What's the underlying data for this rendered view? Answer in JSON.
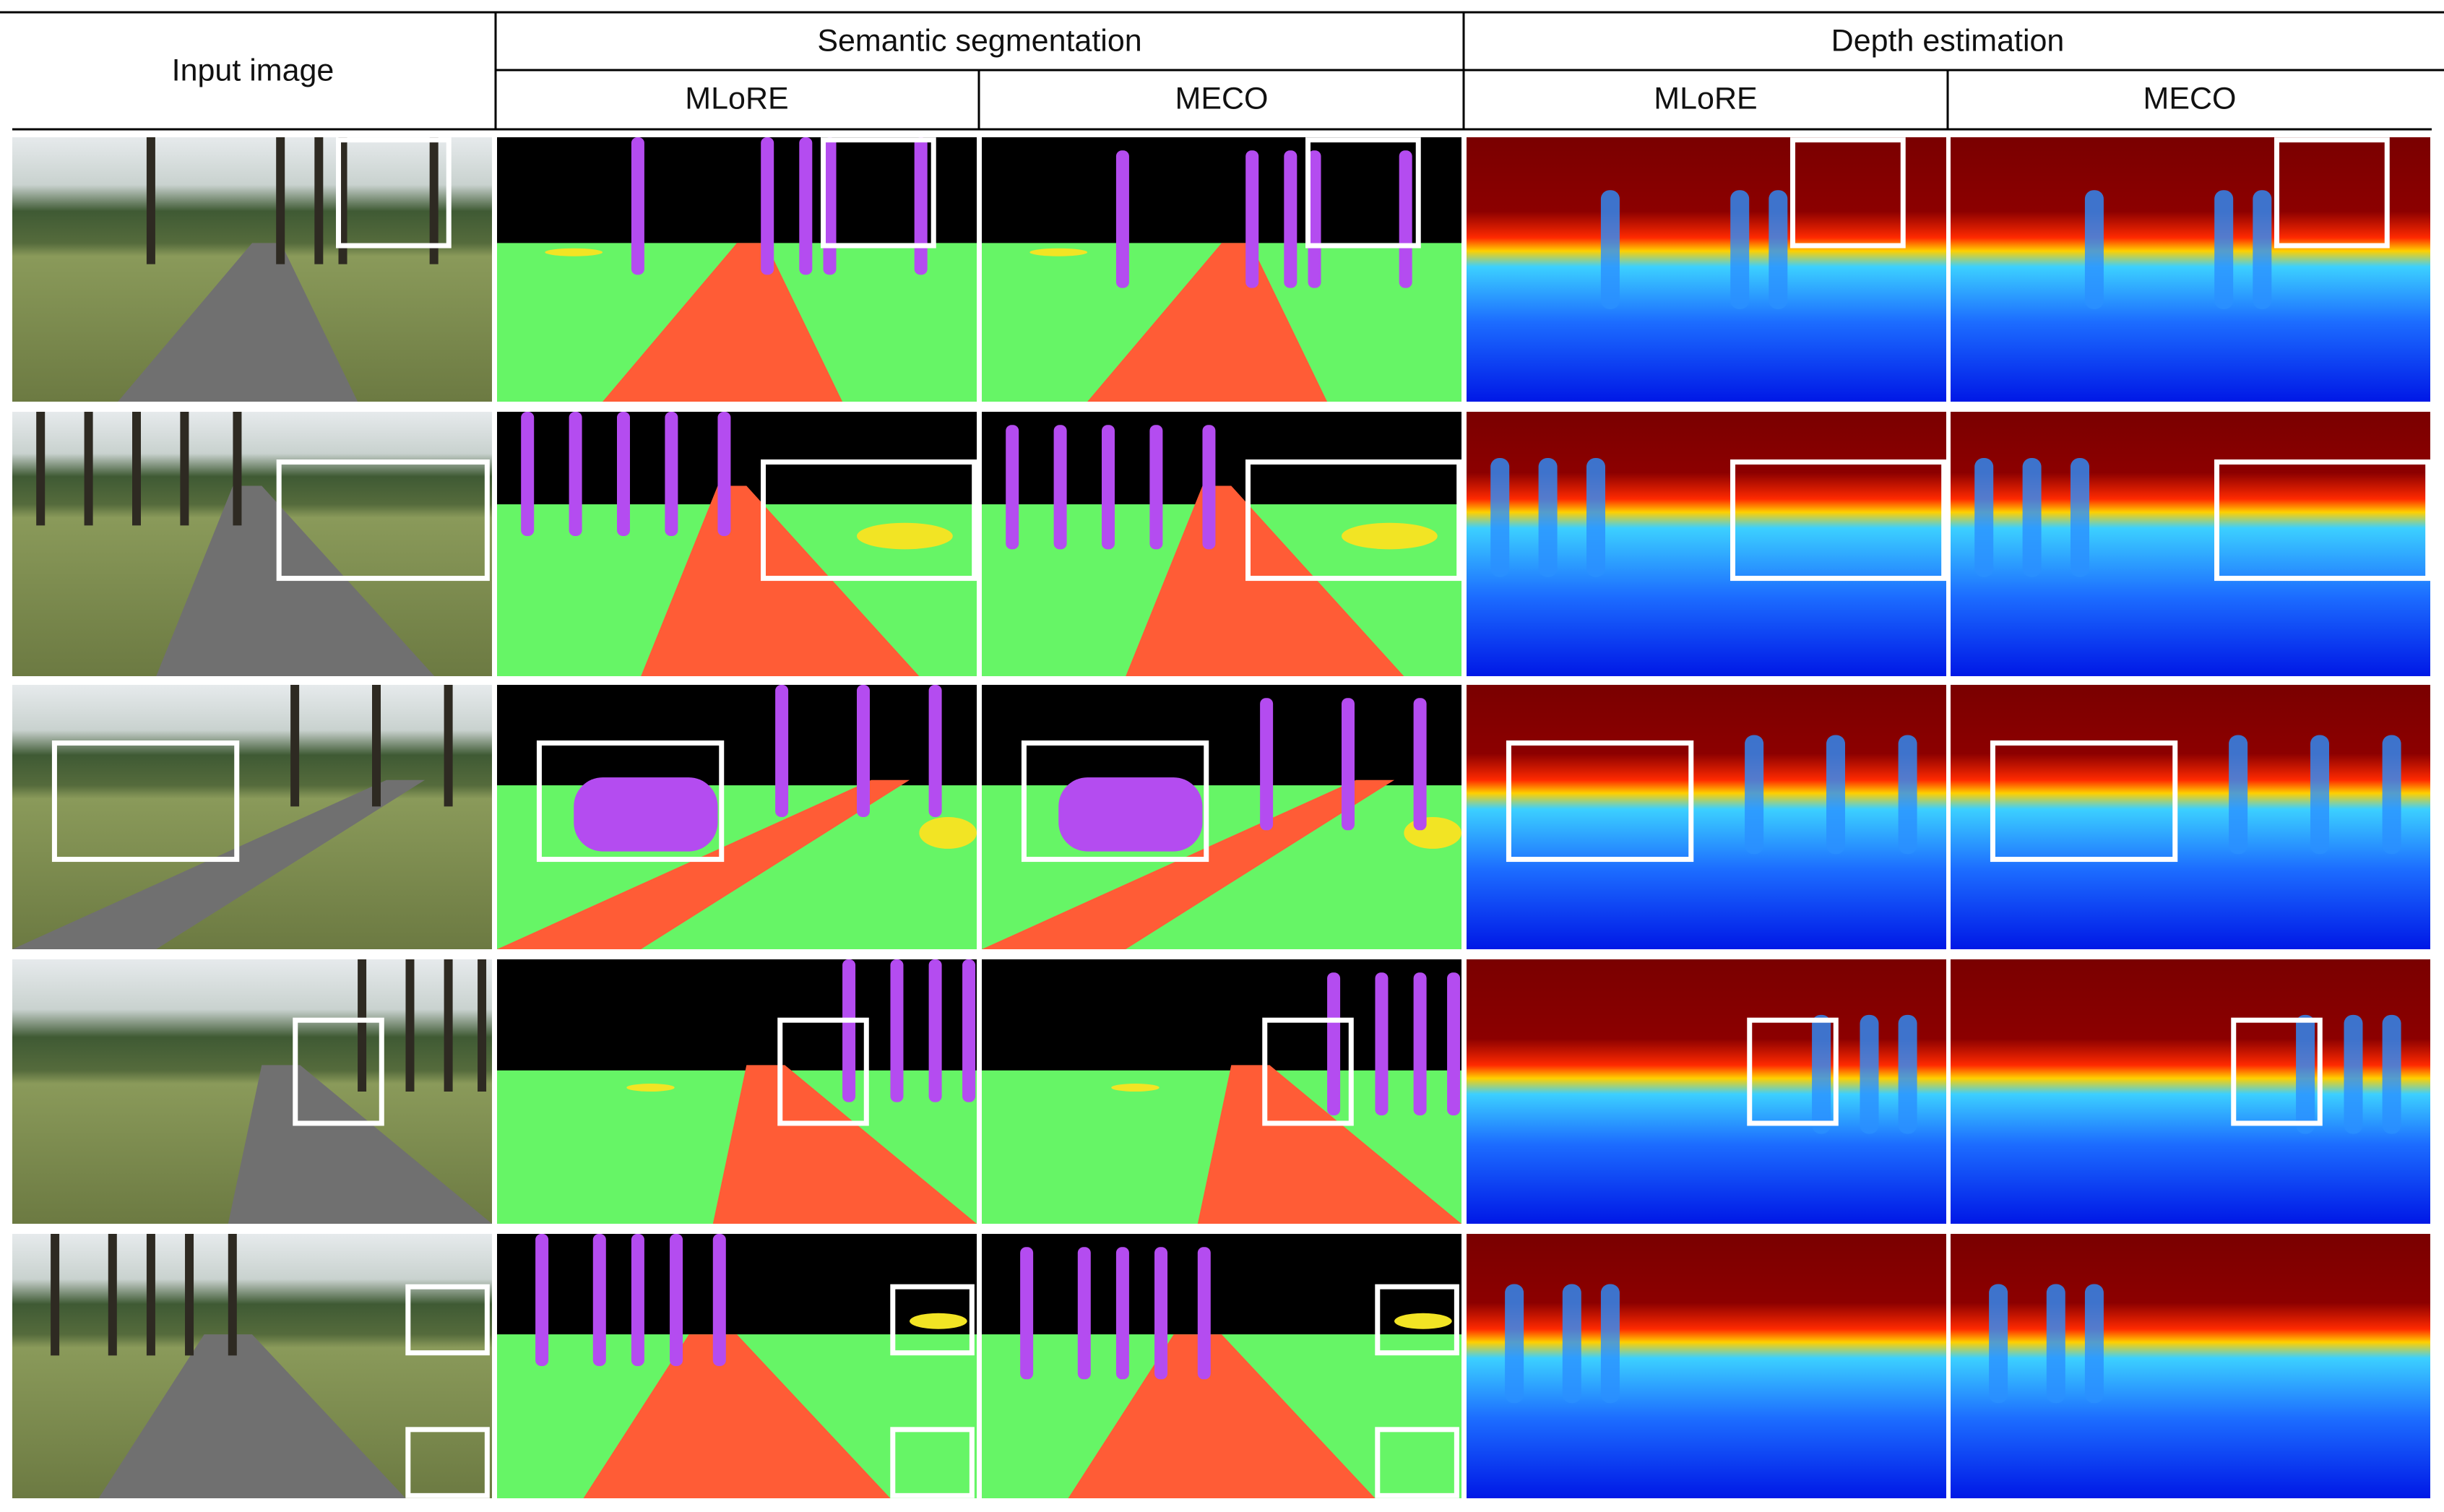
{
  "header": {
    "input": "Input image",
    "groups": [
      "Semantic segmentation",
      "Depth estimation"
    ],
    "methods": [
      "MLoRE",
      "MECO",
      "MLoRE",
      "MECO"
    ]
  }
}
